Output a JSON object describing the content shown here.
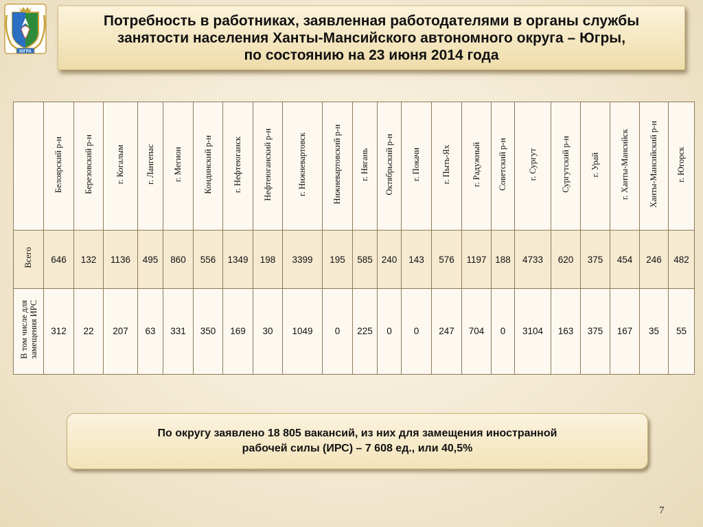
{
  "colors": {
    "background": "#f3e9d2",
    "title_box": "#efdcaa",
    "table_border": "#8c7a58",
    "total_row": "#f6ead1"
  },
  "title": {
    "line1": "Потребность в работниках, заявленная работодателями в органы службы",
    "line2": "занятости населения  Ханты-Мансийского автономного округа – Югры,",
    "line3": "по состоянию на 23 июня 2014 года"
  },
  "emblem": {
    "icon": "coat-of-arms-icon",
    "text": "ЮГРА"
  },
  "table": {
    "columns": [
      "Белоярский р-н",
      "Березовский р-н",
      "г. Когалым",
      "г. Лангепас",
      "г. Мегион",
      "Кондинский р-н",
      "г. Нефтеюганск",
      "Нефтеюганский р-н",
      "г. Нижневартовск",
      "Нижневартовский р-н",
      "г. Нягань",
      "Октябрьский р-н",
      "г. Покачи",
      "г. Пыть-Ях",
      "г. Радужный",
      "Советский р-н",
      "г. Сургут",
      "Сургутский р-н",
      "г. Урай",
      "г. Ханты-Мансийск",
      "Ханты-Мансийский р-н",
      "г. Югорск"
    ],
    "rows": [
      {
        "label": "Всего",
        "values": [
          "646",
          "132",
          "1136",
          "495",
          "860",
          "556",
          "1349",
          "198",
          "3399",
          "195",
          "585",
          "240",
          "143",
          "576",
          "1197",
          "188",
          "4733",
          "620",
          "375",
          "454",
          "246",
          "482"
        ]
      },
      {
        "label": "В том числе для замещения ИРС",
        "values": [
          "312",
          "22",
          "207",
          "63",
          "331",
          "350",
          "169",
          "30",
          "1049",
          "0",
          "225",
          "0",
          "0",
          "247",
          "704",
          "0",
          "3104",
          "163",
          "375",
          "167",
          "35",
          "55"
        ]
      }
    ]
  },
  "summary": {
    "line1": "По округу заявлено  18 805 вакансий,  из них для замещения иностранной",
    "line2": "рабочей силы (ИРС) – 7 608 ед., или  40,5%"
  },
  "page_number": "7"
}
